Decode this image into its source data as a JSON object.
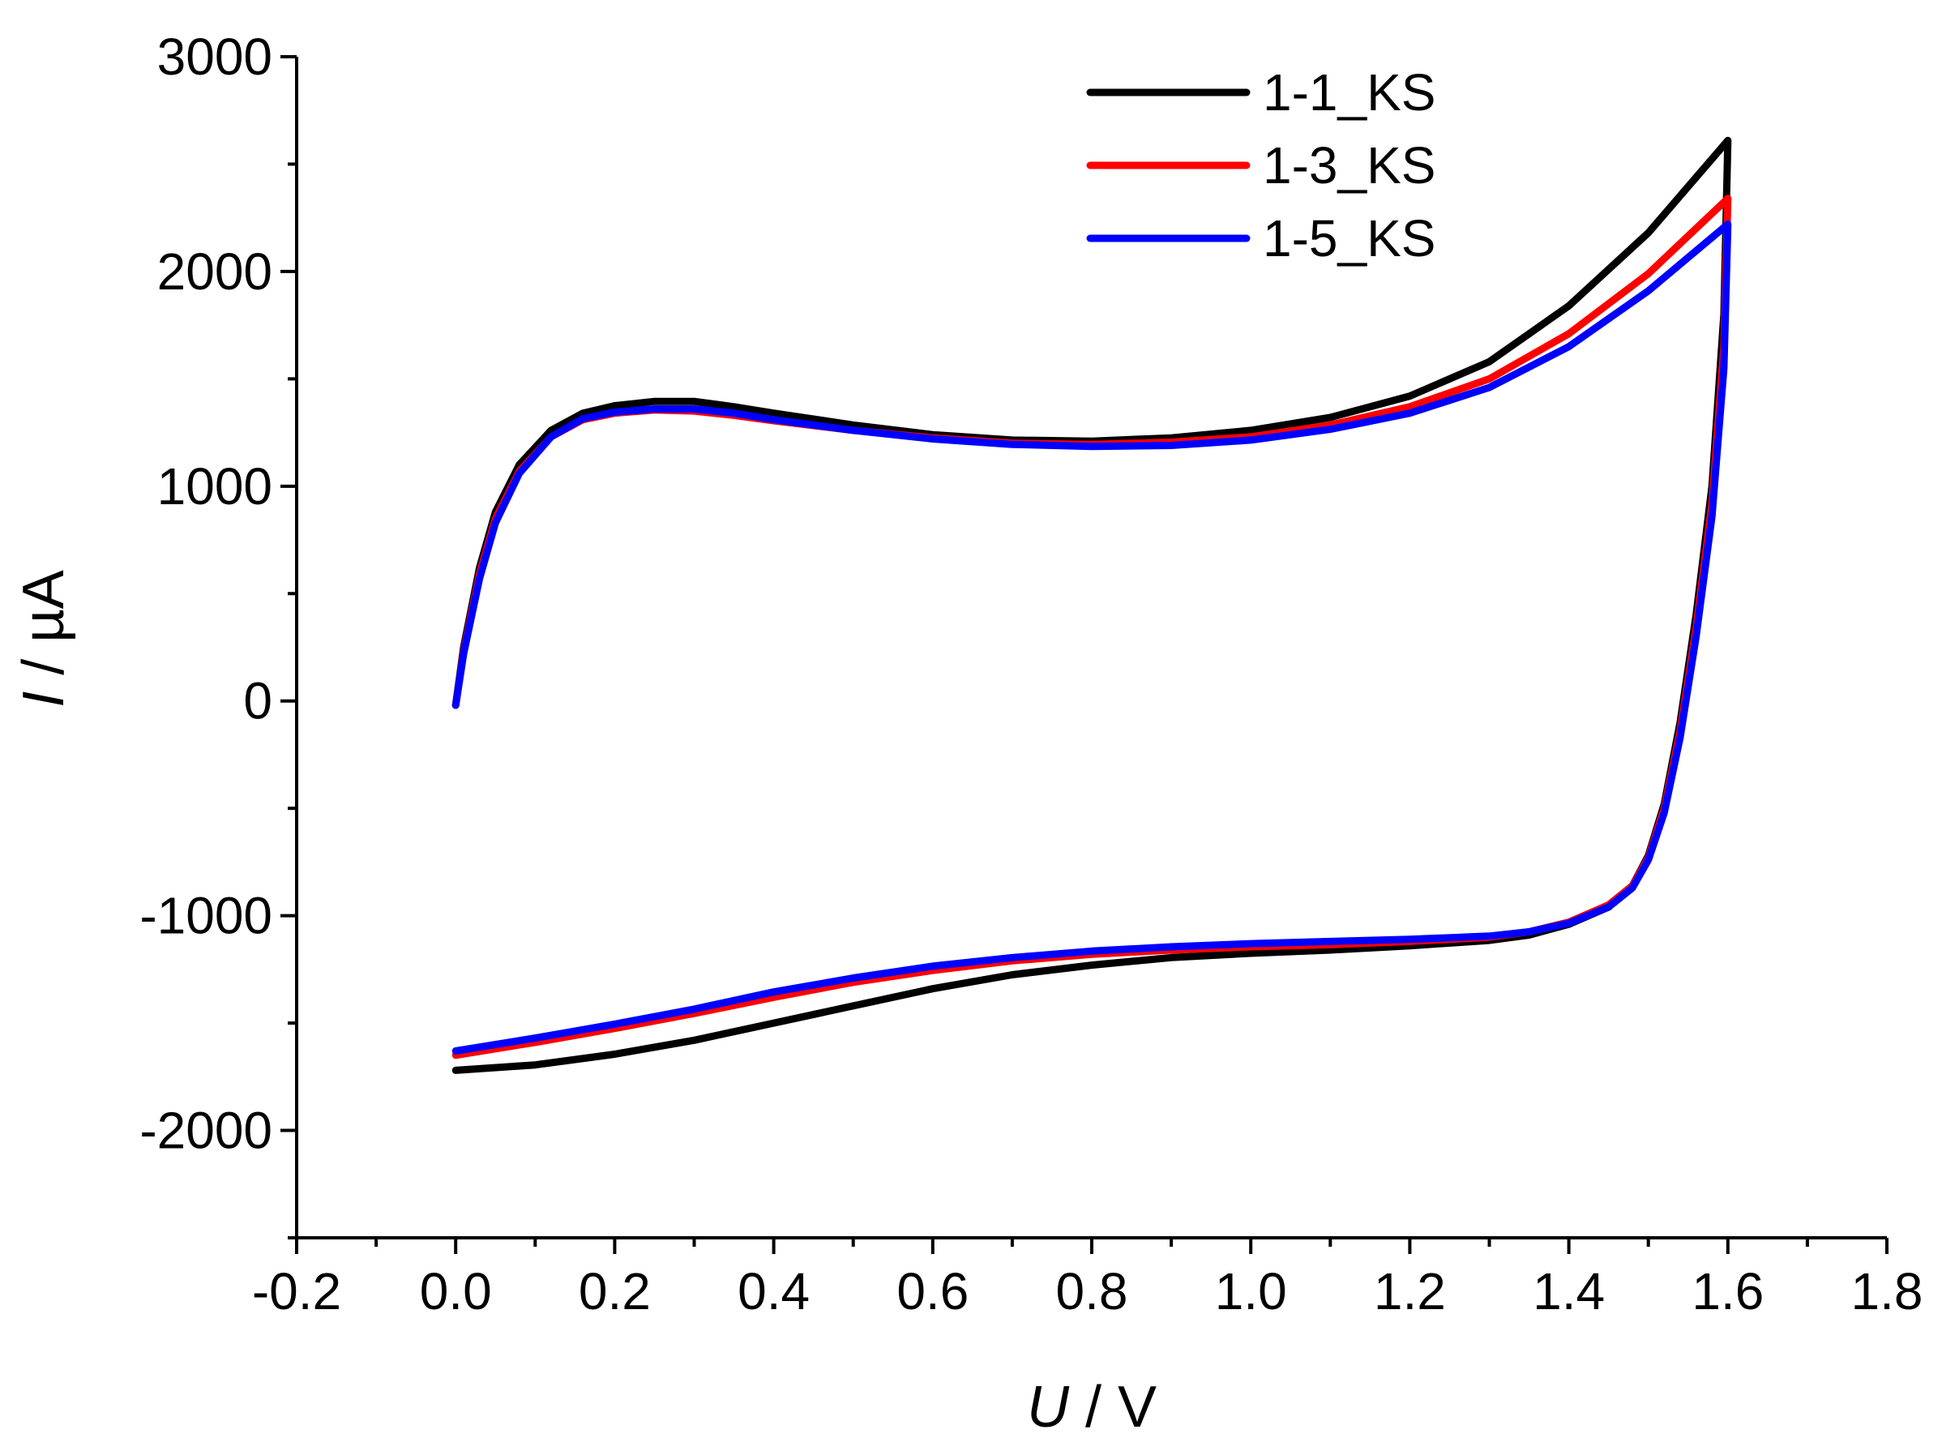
{
  "chart_data": {
    "type": "line",
    "xlabel": {
      "var": "U",
      "unit": " / V"
    },
    "ylabel": {
      "var": "I",
      "unit": " / µA"
    },
    "xlim": [
      -0.2,
      1.8
    ],
    "ylim": [
      -2500,
      3000
    ],
    "x_ticks": [
      "-0.2",
      "0.0",
      "0.2",
      "0.4",
      "0.6",
      "0.8",
      "1.0",
      "1.2",
      "1.4",
      "1.6",
      "1.8"
    ],
    "y_ticks": [
      "3000",
      "2000",
      "1000",
      "0",
      "-1000",
      "-2000"
    ],
    "legend_position": "top-right",
    "grid": false,
    "series": [
      {
        "name": "1-1_KS",
        "color": "#000000",
        "anodic": [
          [
            0.0,
            -20
          ],
          [
            0.01,
            250
          ],
          [
            0.03,
            620
          ],
          [
            0.05,
            880
          ],
          [
            0.08,
            1100
          ],
          [
            0.12,
            1260
          ],
          [
            0.16,
            1340
          ],
          [
            0.2,
            1375
          ],
          [
            0.25,
            1395
          ],
          [
            0.3,
            1395
          ],
          [
            0.35,
            1370
          ],
          [
            0.4,
            1340
          ],
          [
            0.5,
            1285
          ],
          [
            0.6,
            1240
          ],
          [
            0.7,
            1215
          ],
          [
            0.8,
            1210
          ],
          [
            0.9,
            1225
          ],
          [
            1.0,
            1260
          ],
          [
            1.1,
            1320
          ],
          [
            1.2,
            1420
          ],
          [
            1.3,
            1580
          ],
          [
            1.4,
            1840
          ],
          [
            1.5,
            2180
          ],
          [
            1.6,
            2610
          ]
        ],
        "cathodic": [
          [
            1.6,
            2610
          ],
          [
            1.595,
            1800
          ],
          [
            1.58,
            1000
          ],
          [
            1.56,
            400
          ],
          [
            1.54,
            -100
          ],
          [
            1.52,
            -480
          ],
          [
            1.5,
            -720
          ],
          [
            1.48,
            -860
          ],
          [
            1.45,
            -960
          ],
          [
            1.4,
            -1040
          ],
          [
            1.35,
            -1090
          ],
          [
            1.3,
            -1115
          ],
          [
            1.2,
            -1140
          ],
          [
            1.1,
            -1160
          ],
          [
            1.0,
            -1175
          ],
          [
            0.9,
            -1195
          ],
          [
            0.8,
            -1230
          ],
          [
            0.7,
            -1275
          ],
          [
            0.6,
            -1340
          ],
          [
            0.5,
            -1420
          ],
          [
            0.4,
            -1500
          ],
          [
            0.3,
            -1580
          ],
          [
            0.2,
            -1645
          ],
          [
            0.1,
            -1695
          ],
          [
            0.0,
            -1720
          ]
        ]
      },
      {
        "name": "1-3_KS",
        "color": "#ff0000",
        "anodic": [
          [
            0.0,
            -20
          ],
          [
            0.01,
            230
          ],
          [
            0.03,
            590
          ],
          [
            0.05,
            850
          ],
          [
            0.08,
            1070
          ],
          [
            0.12,
            1230
          ],
          [
            0.16,
            1310
          ],
          [
            0.2,
            1340
          ],
          [
            0.25,
            1355
          ],
          [
            0.3,
            1350
          ],
          [
            0.35,
            1330
          ],
          [
            0.4,
            1305
          ],
          [
            0.5,
            1260
          ],
          [
            0.6,
            1225
          ],
          [
            0.7,
            1200
          ],
          [
            0.8,
            1195
          ],
          [
            0.9,
            1205
          ],
          [
            1.0,
            1230
          ],
          [
            1.1,
            1285
          ],
          [
            1.2,
            1370
          ],
          [
            1.3,
            1500
          ],
          [
            1.4,
            1710
          ],
          [
            1.5,
            1990
          ],
          [
            1.6,
            2340
          ]
        ],
        "cathodic": [
          [
            1.6,
            2340
          ],
          [
            1.595,
            1650
          ],
          [
            1.58,
            920
          ],
          [
            1.56,
            340
          ],
          [
            1.54,
            -140
          ],
          [
            1.52,
            -500
          ],
          [
            1.5,
            -730
          ],
          [
            1.48,
            -860
          ],
          [
            1.45,
            -950
          ],
          [
            1.4,
            -1030
          ],
          [
            1.35,
            -1075
          ],
          [
            1.3,
            -1100
          ],
          [
            1.2,
            -1120
          ],
          [
            1.1,
            -1135
          ],
          [
            1.0,
            -1145
          ],
          [
            0.9,
            -1160
          ],
          [
            0.8,
            -1180
          ],
          [
            0.7,
            -1210
          ],
          [
            0.6,
            -1255
          ],
          [
            0.5,
            -1310
          ],
          [
            0.4,
            -1380
          ],
          [
            0.3,
            -1455
          ],
          [
            0.2,
            -1525
          ],
          [
            0.1,
            -1590
          ],
          [
            0.0,
            -1650
          ]
        ]
      },
      {
        "name": "1-5_KS",
        "color": "#0000ff",
        "anodic": [
          [
            0.0,
            -20
          ],
          [
            0.01,
            220
          ],
          [
            0.03,
            570
          ],
          [
            0.05,
            830
          ],
          [
            0.08,
            1060
          ],
          [
            0.12,
            1230
          ],
          [
            0.16,
            1315
          ],
          [
            0.2,
            1345
          ],
          [
            0.25,
            1360
          ],
          [
            0.3,
            1360
          ],
          [
            0.35,
            1340
          ],
          [
            0.4,
            1310
          ],
          [
            0.5,
            1260
          ],
          [
            0.6,
            1220
          ],
          [
            0.7,
            1195
          ],
          [
            0.8,
            1185
          ],
          [
            0.9,
            1190
          ],
          [
            1.0,
            1215
          ],
          [
            1.1,
            1265
          ],
          [
            1.2,
            1340
          ],
          [
            1.3,
            1460
          ],
          [
            1.4,
            1650
          ],
          [
            1.5,
            1910
          ],
          [
            1.6,
            2220
          ]
        ],
        "cathodic": [
          [
            1.6,
            2220
          ],
          [
            1.595,
            1550
          ],
          [
            1.58,
            860
          ],
          [
            1.56,
            300
          ],
          [
            1.54,
            -170
          ],
          [
            1.52,
            -520
          ],
          [
            1.5,
            -740
          ],
          [
            1.48,
            -870
          ],
          [
            1.45,
            -960
          ],
          [
            1.4,
            -1035
          ],
          [
            1.35,
            -1075
          ],
          [
            1.3,
            -1095
          ],
          [
            1.2,
            -1110
          ],
          [
            1.1,
            -1120
          ],
          [
            1.0,
            -1130
          ],
          [
            0.9,
            -1145
          ],
          [
            0.8,
            -1165
          ],
          [
            0.7,
            -1195
          ],
          [
            0.6,
            -1235
          ],
          [
            0.5,
            -1290
          ],
          [
            0.4,
            -1355
          ],
          [
            0.3,
            -1435
          ],
          [
            0.2,
            -1505
          ],
          [
            0.1,
            -1570
          ],
          [
            0.0,
            -1630
          ]
        ]
      }
    ]
  }
}
